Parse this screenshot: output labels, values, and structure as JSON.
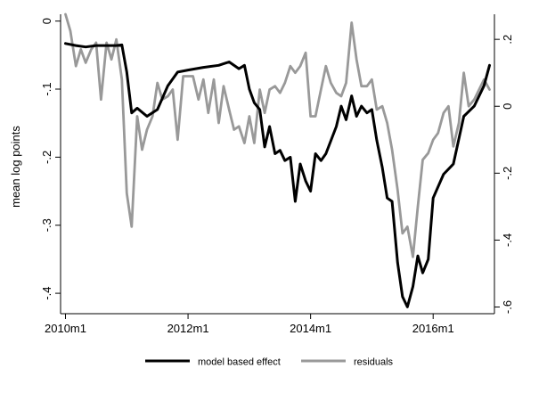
{
  "chart_data": {
    "type": "line",
    "xlabel": "",
    "ylabel": "mean log points",
    "x_ticks": [
      {
        "value": 2010.0,
        "label": "2010m1"
      },
      {
        "value": 2012.0,
        "label": "2012m1"
      },
      {
        "value": 2014.0,
        "label": "2014m1"
      },
      {
        "value": 2016.0,
        "label": "2016m1"
      }
    ],
    "y_left": {
      "range": [
        -0.43,
        0.01
      ],
      "ticks": [
        {
          "value": 0,
          "label": "0"
        },
        {
          "value": -0.1,
          "label": "-.1"
        },
        {
          "value": -0.2,
          "label": "-.2"
        },
        {
          "value": -0.3,
          "label": "-.3"
        },
        {
          "value": -0.4,
          "label": "-.4"
        }
      ]
    },
    "y_right": {
      "range": [
        -0.62,
        0.275
      ],
      "ticks": [
        {
          "value": 0.2,
          "label": ".2"
        },
        {
          "value": 0,
          "label": "0"
        },
        {
          "value": -0.2,
          "label": "-.2"
        },
        {
          "value": -0.4,
          "label": "-.4"
        },
        {
          "value": -0.6,
          "label": "-.6"
        }
      ]
    },
    "grid": false,
    "legend_position": "bottom",
    "series": [
      {
        "name": "model based effect",
        "axis": "left",
        "color": "#000000",
        "x": [
          2010.0,
          2010.17,
          2010.33,
          2010.5,
          2010.67,
          2010.83,
          2010.92,
          2011.0,
          2011.08,
          2011.17,
          2011.33,
          2011.5,
          2011.67,
          2011.83,
          2012.0,
          2012.25,
          2012.5,
          2012.67,
          2012.83,
          2012.92,
          2013.0,
          2013.08,
          2013.17,
          2013.25,
          2013.33,
          2013.42,
          2013.5,
          2013.58,
          2013.67,
          2013.75,
          2013.83,
          2013.92,
          2014.0,
          2014.08,
          2014.17,
          2014.25,
          2014.42,
          2014.5,
          2014.58,
          2014.67,
          2014.75,
          2014.83,
          2014.92,
          2015.0,
          2015.08,
          2015.17,
          2015.25,
          2015.33,
          2015.42,
          2015.5,
          2015.58,
          2015.67,
          2015.75,
          2015.83,
          2015.92,
          2016.0,
          2016.17,
          2016.33,
          2016.5,
          2016.67,
          2016.83,
          2016.92
        ],
        "values": [
          -0.033,
          -0.036,
          -0.038,
          -0.036,
          -0.036,
          -0.036,
          -0.035,
          -0.075,
          -0.135,
          -0.128,
          -0.14,
          -0.13,
          -0.095,
          -0.075,
          -0.072,
          -0.068,
          -0.065,
          -0.06,
          -0.07,
          -0.065,
          -0.1,
          -0.12,
          -0.13,
          -0.185,
          -0.155,
          -0.195,
          -0.19,
          -0.205,
          -0.2,
          -0.265,
          -0.21,
          -0.235,
          -0.25,
          -0.195,
          -0.205,
          -0.195,
          -0.155,
          -0.125,
          -0.145,
          -0.11,
          -0.14,
          -0.125,
          -0.135,
          -0.13,
          -0.175,
          -0.215,
          -0.26,
          -0.265,
          -0.355,
          -0.405,
          -0.42,
          -0.39,
          -0.345,
          -0.37,
          -0.35,
          -0.26,
          -0.225,
          -0.21,
          -0.14,
          -0.125,
          -0.095,
          -0.065
        ]
      },
      {
        "name": "residuals",
        "axis": "right",
        "color": "#999999",
        "x": [
          2010.0,
          2010.08,
          2010.17,
          2010.25,
          2010.33,
          2010.42,
          2010.5,
          2010.58,
          2010.67,
          2010.75,
          2010.83,
          2010.92,
          2011.0,
          2011.08,
          2011.17,
          2011.25,
          2011.33,
          2011.42,
          2011.5,
          2011.58,
          2011.67,
          2011.75,
          2011.83,
          2011.92,
          2012.0,
          2012.08,
          2012.17,
          2012.25,
          2012.33,
          2012.42,
          2012.5,
          2012.58,
          2012.67,
          2012.75,
          2012.83,
          2012.92,
          2013.0,
          2013.08,
          2013.17,
          2013.25,
          2013.33,
          2013.42,
          2013.5,
          2013.58,
          2013.67,
          2013.75,
          2013.83,
          2013.92,
          2014.0,
          2014.08,
          2014.17,
          2014.25,
          2014.33,
          2014.42,
          2014.5,
          2014.58,
          2014.67,
          2014.75,
          2014.83,
          2014.92,
          2015.0,
          2015.08,
          2015.17,
          2015.25,
          2015.33,
          2015.42,
          2015.5,
          2015.58,
          2015.67,
          2015.75,
          2015.83,
          2015.92,
          2016.0,
          2016.08,
          2016.17,
          2016.25,
          2016.33,
          2016.42,
          2016.5,
          2016.58,
          2016.67,
          2016.75,
          2016.83,
          2016.92
        ],
        "values": [
          0.275,
          0.225,
          0.12,
          0.17,
          0.13,
          0.17,
          0.19,
          0.02,
          0.19,
          0.14,
          0.2,
          0.08,
          -0.26,
          -0.36,
          -0.03,
          -0.13,
          -0.07,
          -0.03,
          0.07,
          0.02,
          0.03,
          0.05,
          -0.1,
          0.09,
          0.09,
          0.09,
          0.02,
          0.08,
          -0.02,
          0.08,
          -0.05,
          0.06,
          -0.01,
          -0.07,
          -0.06,
          -0.11,
          -0.03,
          -0.11,
          0.05,
          -0.02,
          0.05,
          0.06,
          0.04,
          0.07,
          0.12,
          0.1,
          0.12,
          0.16,
          -0.03,
          -0.03,
          0.05,
          0.12,
          0.07,
          0.04,
          0.03,
          0.07,
          0.25,
          0.14,
          0.06,
          0.06,
          0.08,
          -0.01,
          0.0,
          -0.05,
          -0.13,
          -0.25,
          -0.38,
          -0.36,
          -0.45,
          -0.3,
          -0.16,
          -0.14,
          -0.1,
          -0.08,
          -0.02,
          0.0,
          -0.12,
          -0.05,
          0.1,
          0.0,
          0.02,
          0.05,
          0.08,
          0.05
        ]
      }
    ]
  }
}
